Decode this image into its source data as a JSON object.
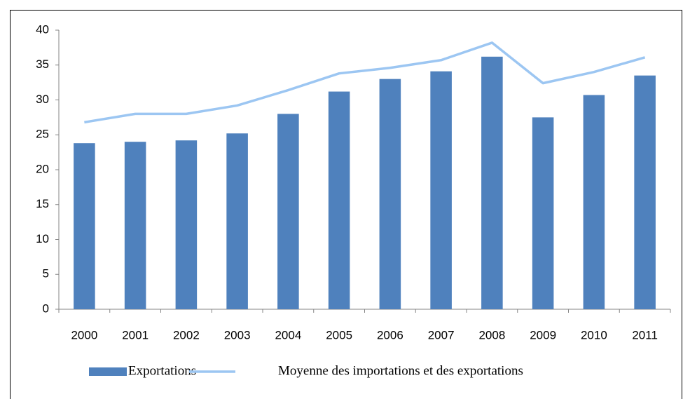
{
  "chart_data": {
    "type": "bar",
    "categories": [
      "2000",
      "2001",
      "2002",
      "2003",
      "2004",
      "2005",
      "2006",
      "2007",
      "2008",
      "2009",
      "2010",
      "2011"
    ],
    "series": [
      {
        "name": "Exportations",
        "type": "bar",
        "color": "#4f81bd",
        "values": [
          23.8,
          24.0,
          24.2,
          25.2,
          28.0,
          31.2,
          33.0,
          34.1,
          36.2,
          27.5,
          30.7,
          33.5
        ]
      },
      {
        "name": "Moyenne des importations et des exportations",
        "type": "line",
        "color": "#9cc6f2",
        "values": [
          26.8,
          28.0,
          28.0,
          29.2,
          31.4,
          33.8,
          34.6,
          35.7,
          38.2,
          32.4,
          34.0,
          36.1
        ]
      }
    ],
    "ylim": [
      0,
      40
    ],
    "yticks": [
      0,
      5,
      10,
      15,
      20,
      25,
      30,
      35,
      40
    ],
    "grid": false,
    "legend": "bottom"
  }
}
